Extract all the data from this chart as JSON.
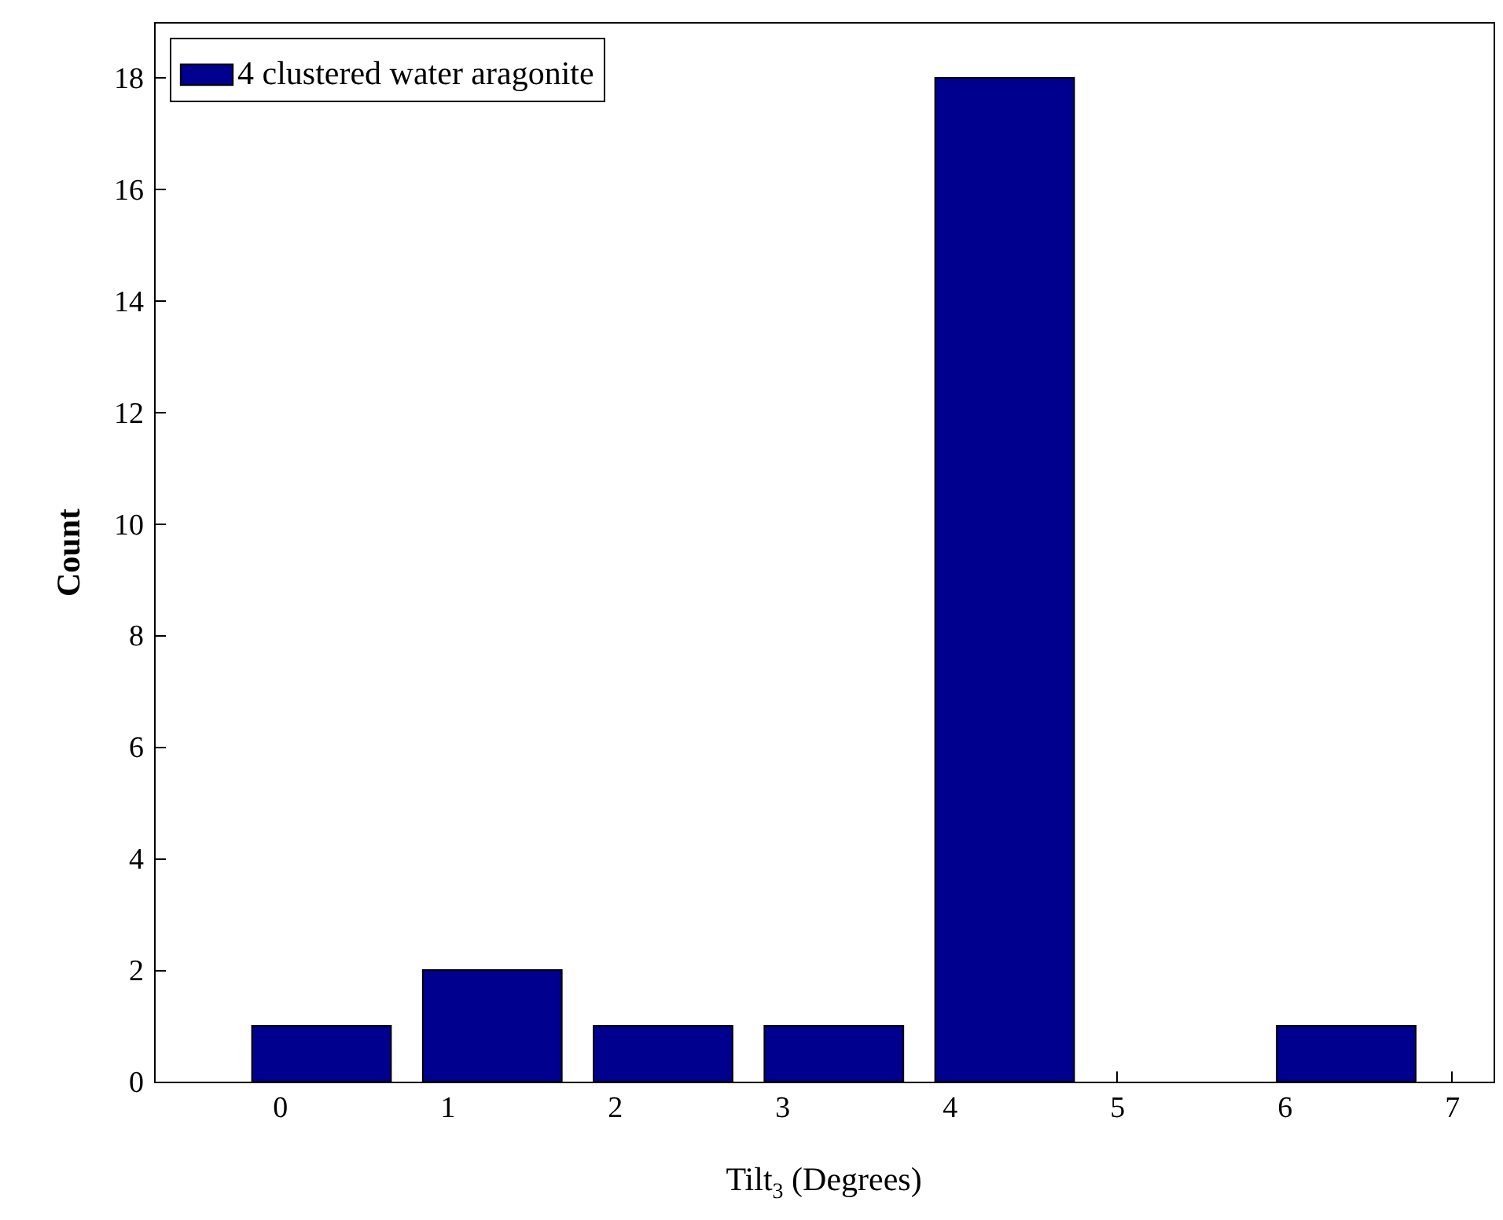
{
  "chart_data": {
    "type": "bar",
    "xlabel": "Tilt$_{3}$ (Degrees)",
    "ylabel": "Count",
    "x": [
      0.25,
      1.27,
      2.29,
      3.31,
      4.33,
      5.35,
      6.37
    ],
    "series": [
      {
        "name": "4 clustered water aragonite",
        "color": "#00008f",
        "values": [
          1,
          2,
          1,
          1,
          18,
          0,
          1
        ]
      }
    ],
    "xlim": [
      -0.75,
      7.25
    ],
    "xticks": [
      0,
      1,
      2,
      3,
      4,
      5,
      6,
      7
    ],
    "ylim": [
      0,
      19
    ],
    "yticks": [
      0,
      2,
      4,
      6,
      8,
      10,
      12,
      14,
      16,
      18
    ],
    "legend": "top left"
  }
}
